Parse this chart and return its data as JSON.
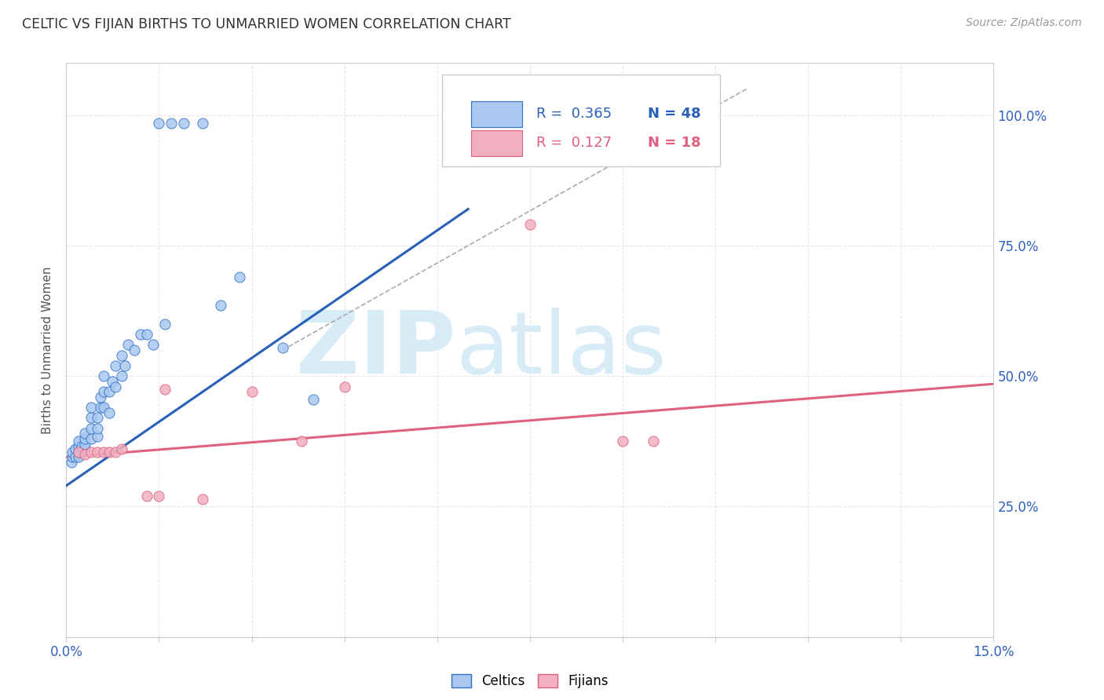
{
  "title": "CELTIC VS FIJIAN BIRTHS TO UNMARRIED WOMEN CORRELATION CHART",
  "source": "Source: ZipAtlas.com",
  "ylabel": "Births to Unmarried Women",
  "xlim": [
    0.0,
    0.15
  ],
  "ylim": [
    0.0,
    1.1
  ],
  "xtick_positions": [
    0.0,
    0.015,
    0.03,
    0.045,
    0.06,
    0.075,
    0.09,
    0.105,
    0.12,
    0.135,
    0.15
  ],
  "xticklabels": [
    "0.0%",
    "",
    "",
    "",
    "",
    "",
    "",
    "",
    "",
    "",
    "15.0%"
  ],
  "ytick_positions": [
    0.0,
    0.25,
    0.5,
    0.75,
    1.0
  ],
  "yticklabels_right": [
    "",
    "25.0%",
    "50.0%",
    "75.0%",
    "100.0%"
  ],
  "celtic_R": 0.365,
  "celtic_N": 48,
  "fijian_R": 0.127,
  "fijian_N": 18,
  "celtic_color": "#aac8f0",
  "celtic_edge_color": "#3070c8",
  "fijian_color": "#f0b0c0",
  "fijian_edge_color": "#e06080",
  "celtic_line_color": "#2860b8",
  "fijian_line_color": "#e06080",
  "watermark_zip": "ZIP",
  "watermark_atlas": "atlas",
  "watermark_color": "#d8ecf8",
  "grid_color": "#e0e0e0",
  "bg_color": "#ffffff",
  "celtic_x": [
    0.0008,
    0.001,
    0.001,
    0.0015,
    0.0015,
    0.002,
    0.002,
    0.002,
    0.002,
    0.0025,
    0.003,
    0.003,
    0.003,
    0.003,
    0.004,
    0.004,
    0.004,
    0.004,
    0.005,
    0.005,
    0.005,
    0.0055,
    0.0055,
    0.006,
    0.006,
    0.006,
    0.007,
    0.007,
    0.0075,
    0.008,
    0.008,
    0.009,
    0.009,
    0.0095,
    0.01,
    0.011,
    0.012,
    0.013,
    0.014,
    0.016,
    0.025,
    0.028,
    0.035,
    0.04,
    0.015,
    0.017,
    0.019,
    0.022
  ],
  "celtic_y": [
    0.335,
    0.345,
    0.355,
    0.345,
    0.36,
    0.345,
    0.355,
    0.365,
    0.375,
    0.365,
    0.36,
    0.37,
    0.38,
    0.39,
    0.38,
    0.4,
    0.42,
    0.44,
    0.385,
    0.4,
    0.42,
    0.44,
    0.46,
    0.44,
    0.47,
    0.5,
    0.43,
    0.47,
    0.49,
    0.48,
    0.52,
    0.5,
    0.54,
    0.52,
    0.56,
    0.55,
    0.58,
    0.58,
    0.56,
    0.6,
    0.635,
    0.69,
    0.555,
    0.455,
    0.985,
    0.985,
    0.985,
    0.985
  ],
  "fijian_x": [
    0.002,
    0.003,
    0.004,
    0.005,
    0.006,
    0.007,
    0.008,
    0.009,
    0.013,
    0.015,
    0.016,
    0.022,
    0.03,
    0.038,
    0.045,
    0.075,
    0.09,
    0.095
  ],
  "fijian_y": [
    0.355,
    0.35,
    0.355,
    0.355,
    0.355,
    0.355,
    0.355,
    0.36,
    0.27,
    0.27,
    0.475,
    0.265,
    0.47,
    0.375,
    0.48,
    0.79,
    0.375,
    0.375
  ],
  "celtic_line_x": [
    0.0,
    0.065
  ],
  "celtic_line_y": [
    0.29,
    0.82
  ],
  "fijian_line_x": [
    0.0,
    0.15
  ],
  "fijian_line_y": [
    0.345,
    0.485
  ],
  "diag_line_x": [
    0.035,
    0.11
  ],
  "diag_line_y": [
    0.55,
    1.05
  ]
}
